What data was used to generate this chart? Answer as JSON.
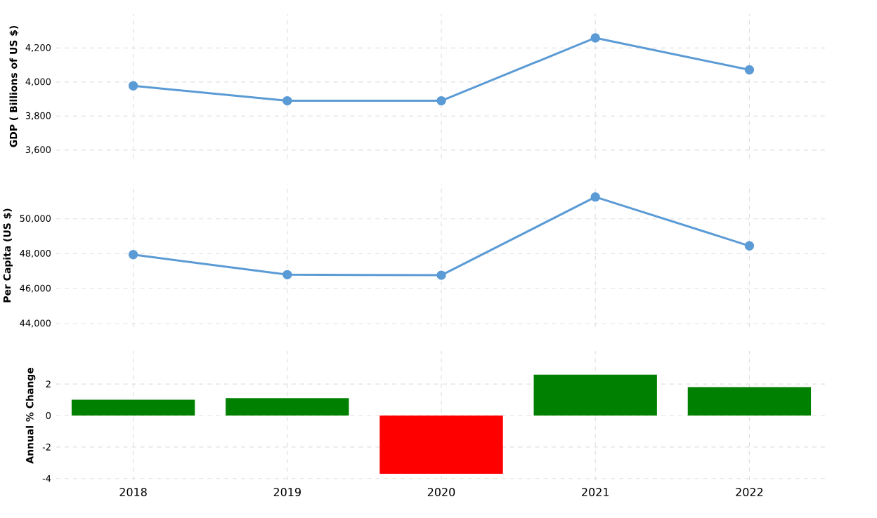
{
  "chart_data": [
    {
      "type": "line",
      "ylabel": "GDP ( Billions of US $)",
      "categories": [
        null,
        null,
        null,
        null,
        null
      ],
      "series": [
        {
          "color": "#5b9bd5",
          "values": [
            3978,
            3890,
            3890,
            4260,
            4072
          ]
        }
      ],
      "ylim": [
        3550,
        4400
      ],
      "yticks": [
        {
          "value": 3600,
          "label": "3,600"
        },
        {
          "value": 3800,
          "label": "3,800"
        },
        {
          "value": 4000,
          "label": "4,000"
        },
        {
          "value": 4200,
          "label": "4,200"
        }
      ],
      "grid": true,
      "marker": "circle",
      "tick_labels": "y"
    },
    {
      "type": "line",
      "ylabel": "Per Capita (US $)",
      "categories": [
        null,
        null,
        null,
        null,
        null
      ],
      "series": [
        {
          "color": "#5b9bd5",
          "values": [
            47950,
            46800,
            46770,
            51250,
            48450
          ]
        }
      ],
      "ylim": [
        43800,
        52000
      ],
      "yticks": [
        {
          "value": 44000,
          "label": "44,000"
        },
        {
          "value": 46000,
          "label": "46,000"
        },
        {
          "value": 48000,
          "label": "48,000"
        },
        {
          "value": 50000,
          "label": "50,000"
        }
      ],
      "grid": true,
      "marker": "circle",
      "tick_labels": "y"
    },
    {
      "type": "bar",
      "ylabel": "Annual % Change",
      "categories": [
        "2018",
        "2019",
        "2020",
        "2021",
        "2022"
      ],
      "values": [
        1.0,
        1.1,
        -3.7,
        2.6,
        1.8
      ],
      "colors": [
        "#008000",
        "#008000",
        "#ff0000",
        "#008000",
        "#008000"
      ],
      "ylim": [
        -4.1,
        4.1
      ],
      "yticks": [
        -4,
        -2,
        0,
        2
      ],
      "grid": true
    }
  ]
}
